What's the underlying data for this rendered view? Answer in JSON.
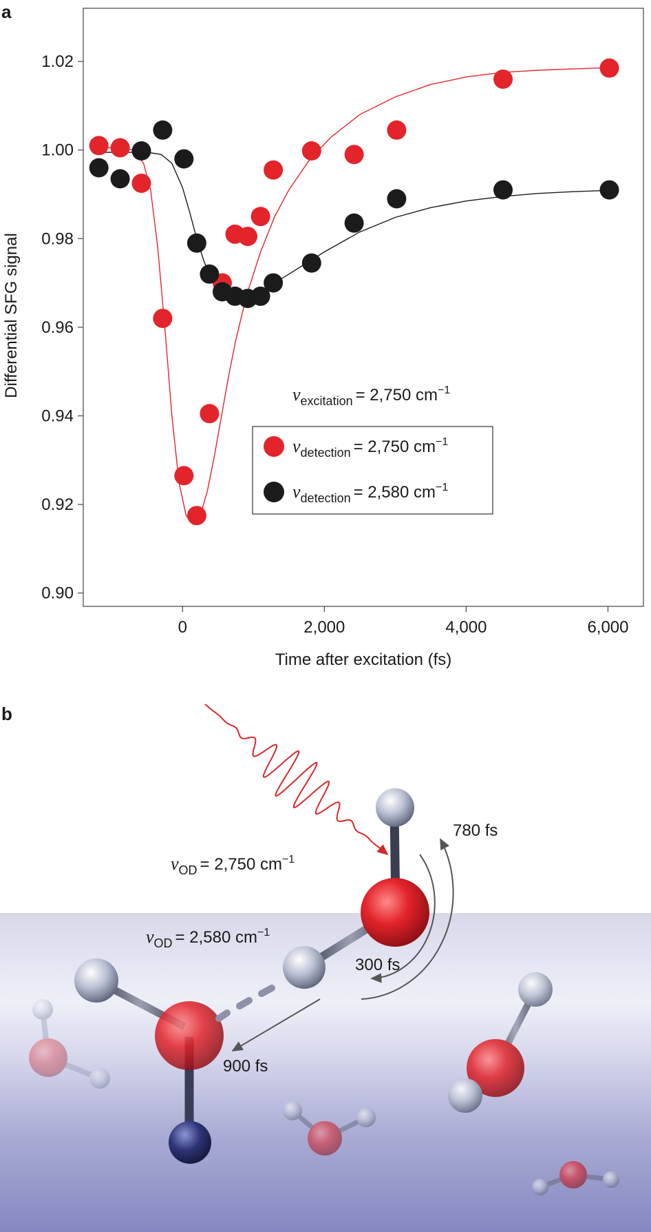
{
  "panels": {
    "a": "a",
    "b": "b"
  },
  "chart_data": {
    "type": "scatter",
    "xlabel": "Time after excitation (fs)",
    "ylabel": "Differential SFG signal",
    "xlim": [
      -1400,
      6500
    ],
    "ylim": [
      0.897,
      1.032
    ],
    "x_ticks": [
      0,
      2000,
      4000,
      6000
    ],
    "x_tick_labels": [
      "0",
      "2,000",
      "4,000",
      "6,000"
    ],
    "y_ticks": [
      0.9,
      0.92,
      0.94,
      0.96,
      0.98,
      1.0,
      1.02
    ],
    "y_tick_labels": [
      "0.90",
      "0.92",
      "0.94",
      "0.96",
      "0.98",
      "1.00",
      "1.02"
    ],
    "grid": false,
    "legend_position": "lower-middle",
    "annotation": {
      "symbol": "ν",
      "subscript": "excitation",
      "value": "= 2,750 cm",
      "superscript": "−1"
    },
    "series": [
      {
        "symbol": "ν",
        "subscript": "detection",
        "value": "= 2,750 cm",
        "superscript": "−1",
        "color": "#e3242b",
        "fit_color": "#e3242b",
        "x": [
          -1180,
          -880,
          -580,
          -280,
          20,
          200,
          380,
          560,
          740,
          920,
          1100,
          1280,
          1820,
          2420,
          3020,
          4520,
          6020
        ],
        "y": [
          1.001,
          1.0005,
          0.9925,
          0.962,
          0.9265,
          0.9175,
          0.9405,
          0.97,
          0.981,
          0.9805,
          0.985,
          0.9955,
          0.9998,
          0.999,
          1.0045,
          1.016,
          1.0185
        ],
        "fit": {
          "x": [
            -1200,
            -900,
            -700,
            -550,
            -450,
            -350,
            -250,
            -150,
            -50,
            50,
            150,
            200,
            250,
            350,
            450,
            550,
            650,
            750,
            900,
            1100,
            1300,
            1500,
            1800,
            2100,
            2500,
            3000,
            3500,
            4000,
            4500,
            5000,
            5500,
            6000
          ],
          "y": [
            1.0005,
            1.0005,
            1.0,
            0.997,
            0.991,
            0.978,
            0.96,
            0.94,
            0.925,
            0.9175,
            0.9155,
            0.9157,
            0.9175,
            0.923,
            0.931,
            0.94,
            0.949,
            0.957,
            0.967,
            0.977,
            0.985,
            0.991,
            0.998,
            1.003,
            1.008,
            1.012,
            1.0148,
            1.0165,
            1.0175,
            1.018,
            1.0183,
            1.0186
          ]
        }
      },
      {
        "symbol": "ν",
        "subscript": "detection",
        "value": "= 2,580 cm",
        "superscript": "−1",
        "color": "#1b1b1b",
        "fit_color": "#1b1b1b",
        "x": [
          -1180,
          -880,
          -580,
          -280,
          20,
          200,
          380,
          560,
          740,
          920,
          1100,
          1280,
          1820,
          2420,
          3020,
          4520,
          6020
        ],
        "y": [
          0.996,
          0.9935,
          0.9998,
          1.0045,
          0.998,
          0.979,
          0.972,
          0.968,
          0.967,
          0.9665,
          0.967,
          0.97,
          0.9745,
          0.9835,
          0.989,
          0.991,
          0.991
        ],
        "fit": {
          "x": [
            -1200,
            -800,
            -500,
            -300,
            -150,
            0,
            100,
            200,
            300,
            400,
            500,
            600,
            700,
            800,
            900,
            1000,
            1200,
            1500,
            2000,
            2500,
            3000,
            3500,
            4000,
            4500,
            5000,
            5500,
            6000
          ],
          "y": [
            0.9995,
            0.9995,
            0.9995,
            0.999,
            0.997,
            0.9915,
            0.986,
            0.98,
            0.975,
            0.971,
            0.968,
            0.9665,
            0.966,
            0.966,
            0.9665,
            0.967,
            0.969,
            0.972,
            0.977,
            0.9815,
            0.9848,
            0.987,
            0.9885,
            0.9895,
            0.9902,
            0.9906,
            0.9909
          ]
        }
      }
    ]
  },
  "diagram": {
    "label_high": {
      "symbol": "ν",
      "subscript": "OD",
      "value": "= 2,750 cm",
      "superscript": "−1"
    },
    "label_low": {
      "symbol": "ν",
      "subscript": "OD",
      "value": "= 2,580 cm",
      "superscript": "−1"
    },
    "times": {
      "t780": "780 fs",
      "t300": "300 fs",
      "t900": "900 fs"
    },
    "colors": {
      "water_top": "#dcdcec",
      "water_mid": "#eef0f8",
      "water_bottom": "#8a8cc4",
      "oxygen": "#e3242b",
      "photon": "#d42a2a",
      "arrow": "#555555"
    }
  }
}
